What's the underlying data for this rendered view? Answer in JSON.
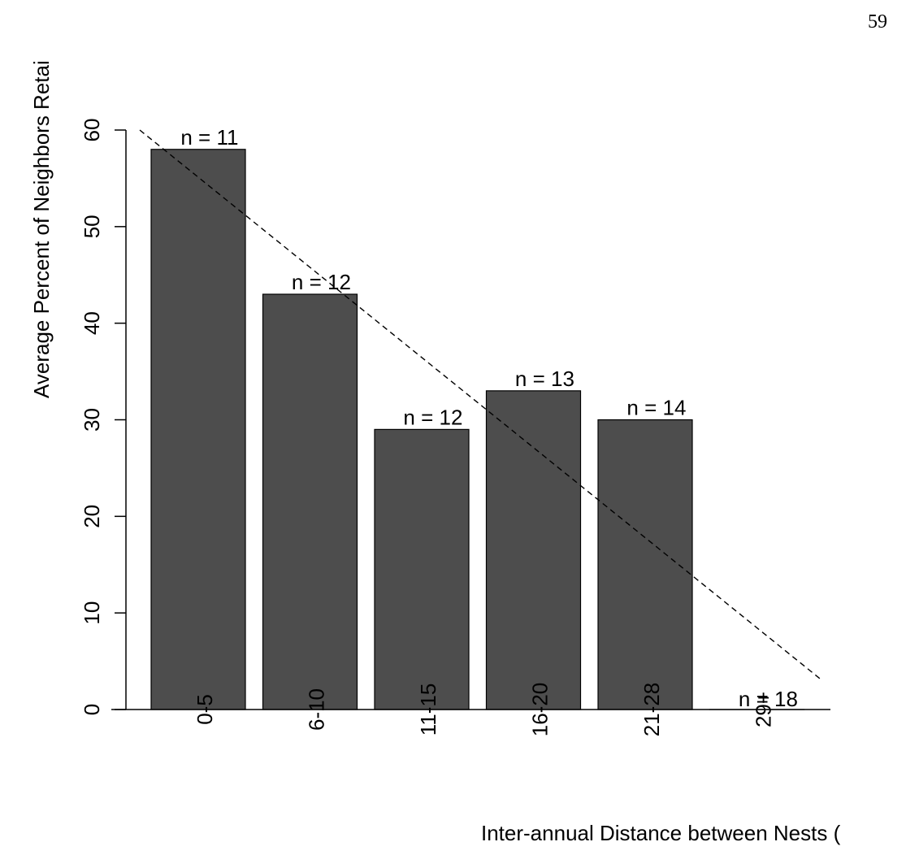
{
  "page_number": "59",
  "chart_data": {
    "type": "bar",
    "categories": [
      "0-5",
      "6-10",
      "11-15",
      "16-20",
      "21-28",
      "29+"
    ],
    "values": [
      58,
      43,
      29,
      33,
      30,
      0
    ],
    "bar_labels": [
      "n = 11",
      "n = 12",
      "n = 12",
      "n = 13",
      "n = 14",
      "n = 18"
    ],
    "ylabel": "Average Percent of Neighbors Retai",
    "xlabel": "Inter-annual Distance between Nests (",
    "ylim": [
      0,
      60
    ],
    "yticks": [
      0,
      10,
      20,
      30,
      40,
      50,
      60
    ],
    "trendline": {
      "style": "dashed",
      "from": [
        0,
        60
      ],
      "to": [
        6,
        3
      ]
    },
    "bar_color": "#4d4d4d",
    "grid": false
  }
}
